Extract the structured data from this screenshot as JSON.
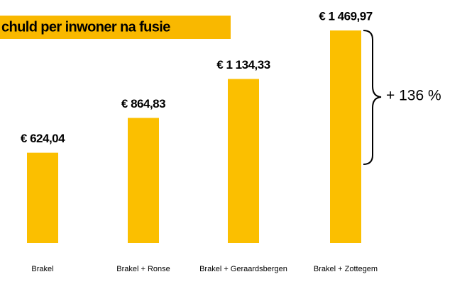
{
  "chart_data": {
    "type": "bar",
    "title": "chuld per inwoner na fusie",
    "categories": [
      "Brakel",
      "Brakel + Ronse",
      "Brakel + Geraardsbergen",
      "Brakel + Zottegem"
    ],
    "values": [
      624.04,
      864.83,
      1134.33,
      1469.97
    ],
    "value_labels": [
      "€ 624,04",
      "€ 864,83",
      "€ 1 134,33",
      "€ 1 469,97"
    ],
    "color": "#fbbf00",
    "annotation": "+ 136 %"
  }
}
